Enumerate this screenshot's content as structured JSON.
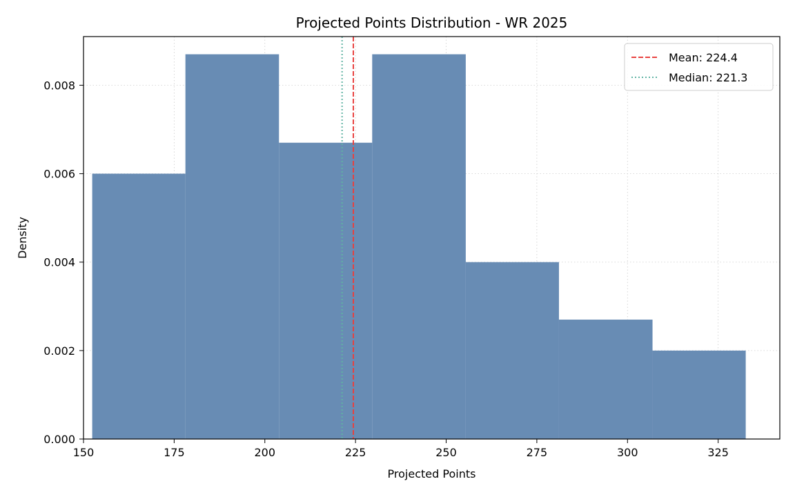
{
  "chart_data": {
    "type": "histogram",
    "title": "Projected Points Distribution - WR 2025",
    "xlabel": "Projected Points",
    "ylabel": "Density",
    "xlim": [
      150,
      342
    ],
    "ylim": [
      0,
      0.0091
    ],
    "xticks": [
      150,
      175,
      200,
      225,
      250,
      275,
      300,
      325
    ],
    "xtick_labels": [
      "150",
      "175",
      "200",
      "225",
      "250",
      "275",
      "300",
      "325"
    ],
    "yticks": [
      0,
      0.002,
      0.004,
      0.006,
      0.008
    ],
    "ytick_labels": [
      "0.000",
      "0.002",
      "0.004",
      "0.006",
      "0.008"
    ],
    "grid": true,
    "bins": [
      {
        "x0": 152.4,
        "x1": 178.1,
        "density": 0.006
      },
      {
        "x0": 178.1,
        "x1": 203.9,
        "density": 0.0087
      },
      {
        "x0": 203.9,
        "x1": 229.6,
        "density": 0.0067
      },
      {
        "x0": 229.6,
        "x1": 255.4,
        "density": 0.0087
      },
      {
        "x0": 255.4,
        "x1": 281.1,
        "density": 0.004
      },
      {
        "x0": 281.1,
        "x1": 306.9,
        "density": 0.0027
      },
      {
        "x0": 306.9,
        "x1": 332.6,
        "density": 0.002
      }
    ],
    "reference_lines": [
      {
        "name": "Mean: 224.4",
        "value": 224.4,
        "style": "dashed",
        "color": "#e8413f"
      },
      {
        "name": "Median: 221.3",
        "value": 221.3,
        "style": "dotted",
        "color": "#5fb3a3"
      }
    ],
    "bar_color": "#688cb4",
    "legend_position": "top-right"
  }
}
